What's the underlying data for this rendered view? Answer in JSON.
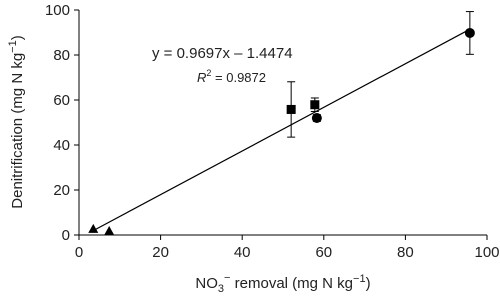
{
  "chart_data": {
    "type": "scatter",
    "x_label": [
      "NO",
      "3",
      "−",
      " removal (mg N kg",
      "−1",
      ")"
    ],
    "y_label": [
      "Denitrification (mg N kg",
      "−1",
      ")"
    ],
    "annotations": {
      "equation": "y = 0.9697x – 1.4474",
      "r2": [
        "R",
        "2",
        " = 0.9872"
      ]
    },
    "xlim": [
      0,
      100
    ],
    "ylim": [
      0,
      100
    ],
    "xticks": [
      0,
      20,
      40,
      60,
      80,
      100
    ],
    "yticks": [
      0,
      20,
      40,
      60,
      80,
      100
    ],
    "color": "#000000",
    "series": [
      {
        "marker": "triangle",
        "x": [
          3.5,
          7.4
        ],
        "values": [
          2.7,
          1.8
        ]
      },
      {
        "marker": "square",
        "x": [
          52,
          57.8
        ],
        "values": [
          55.8,
          57.9
        ],
        "errors": [
          12.3,
          3
        ]
      },
      {
        "marker": "circle",
        "x": [
          58.3,
          95.8
        ],
        "values": [
          52,
          89.8
        ],
        "errors": [
          1.5,
          9.5
        ]
      }
    ],
    "fit": {
      "slope": 0.9697,
      "intercept": -1.4474,
      "x": [
        3.5,
        96
      ]
    }
  }
}
